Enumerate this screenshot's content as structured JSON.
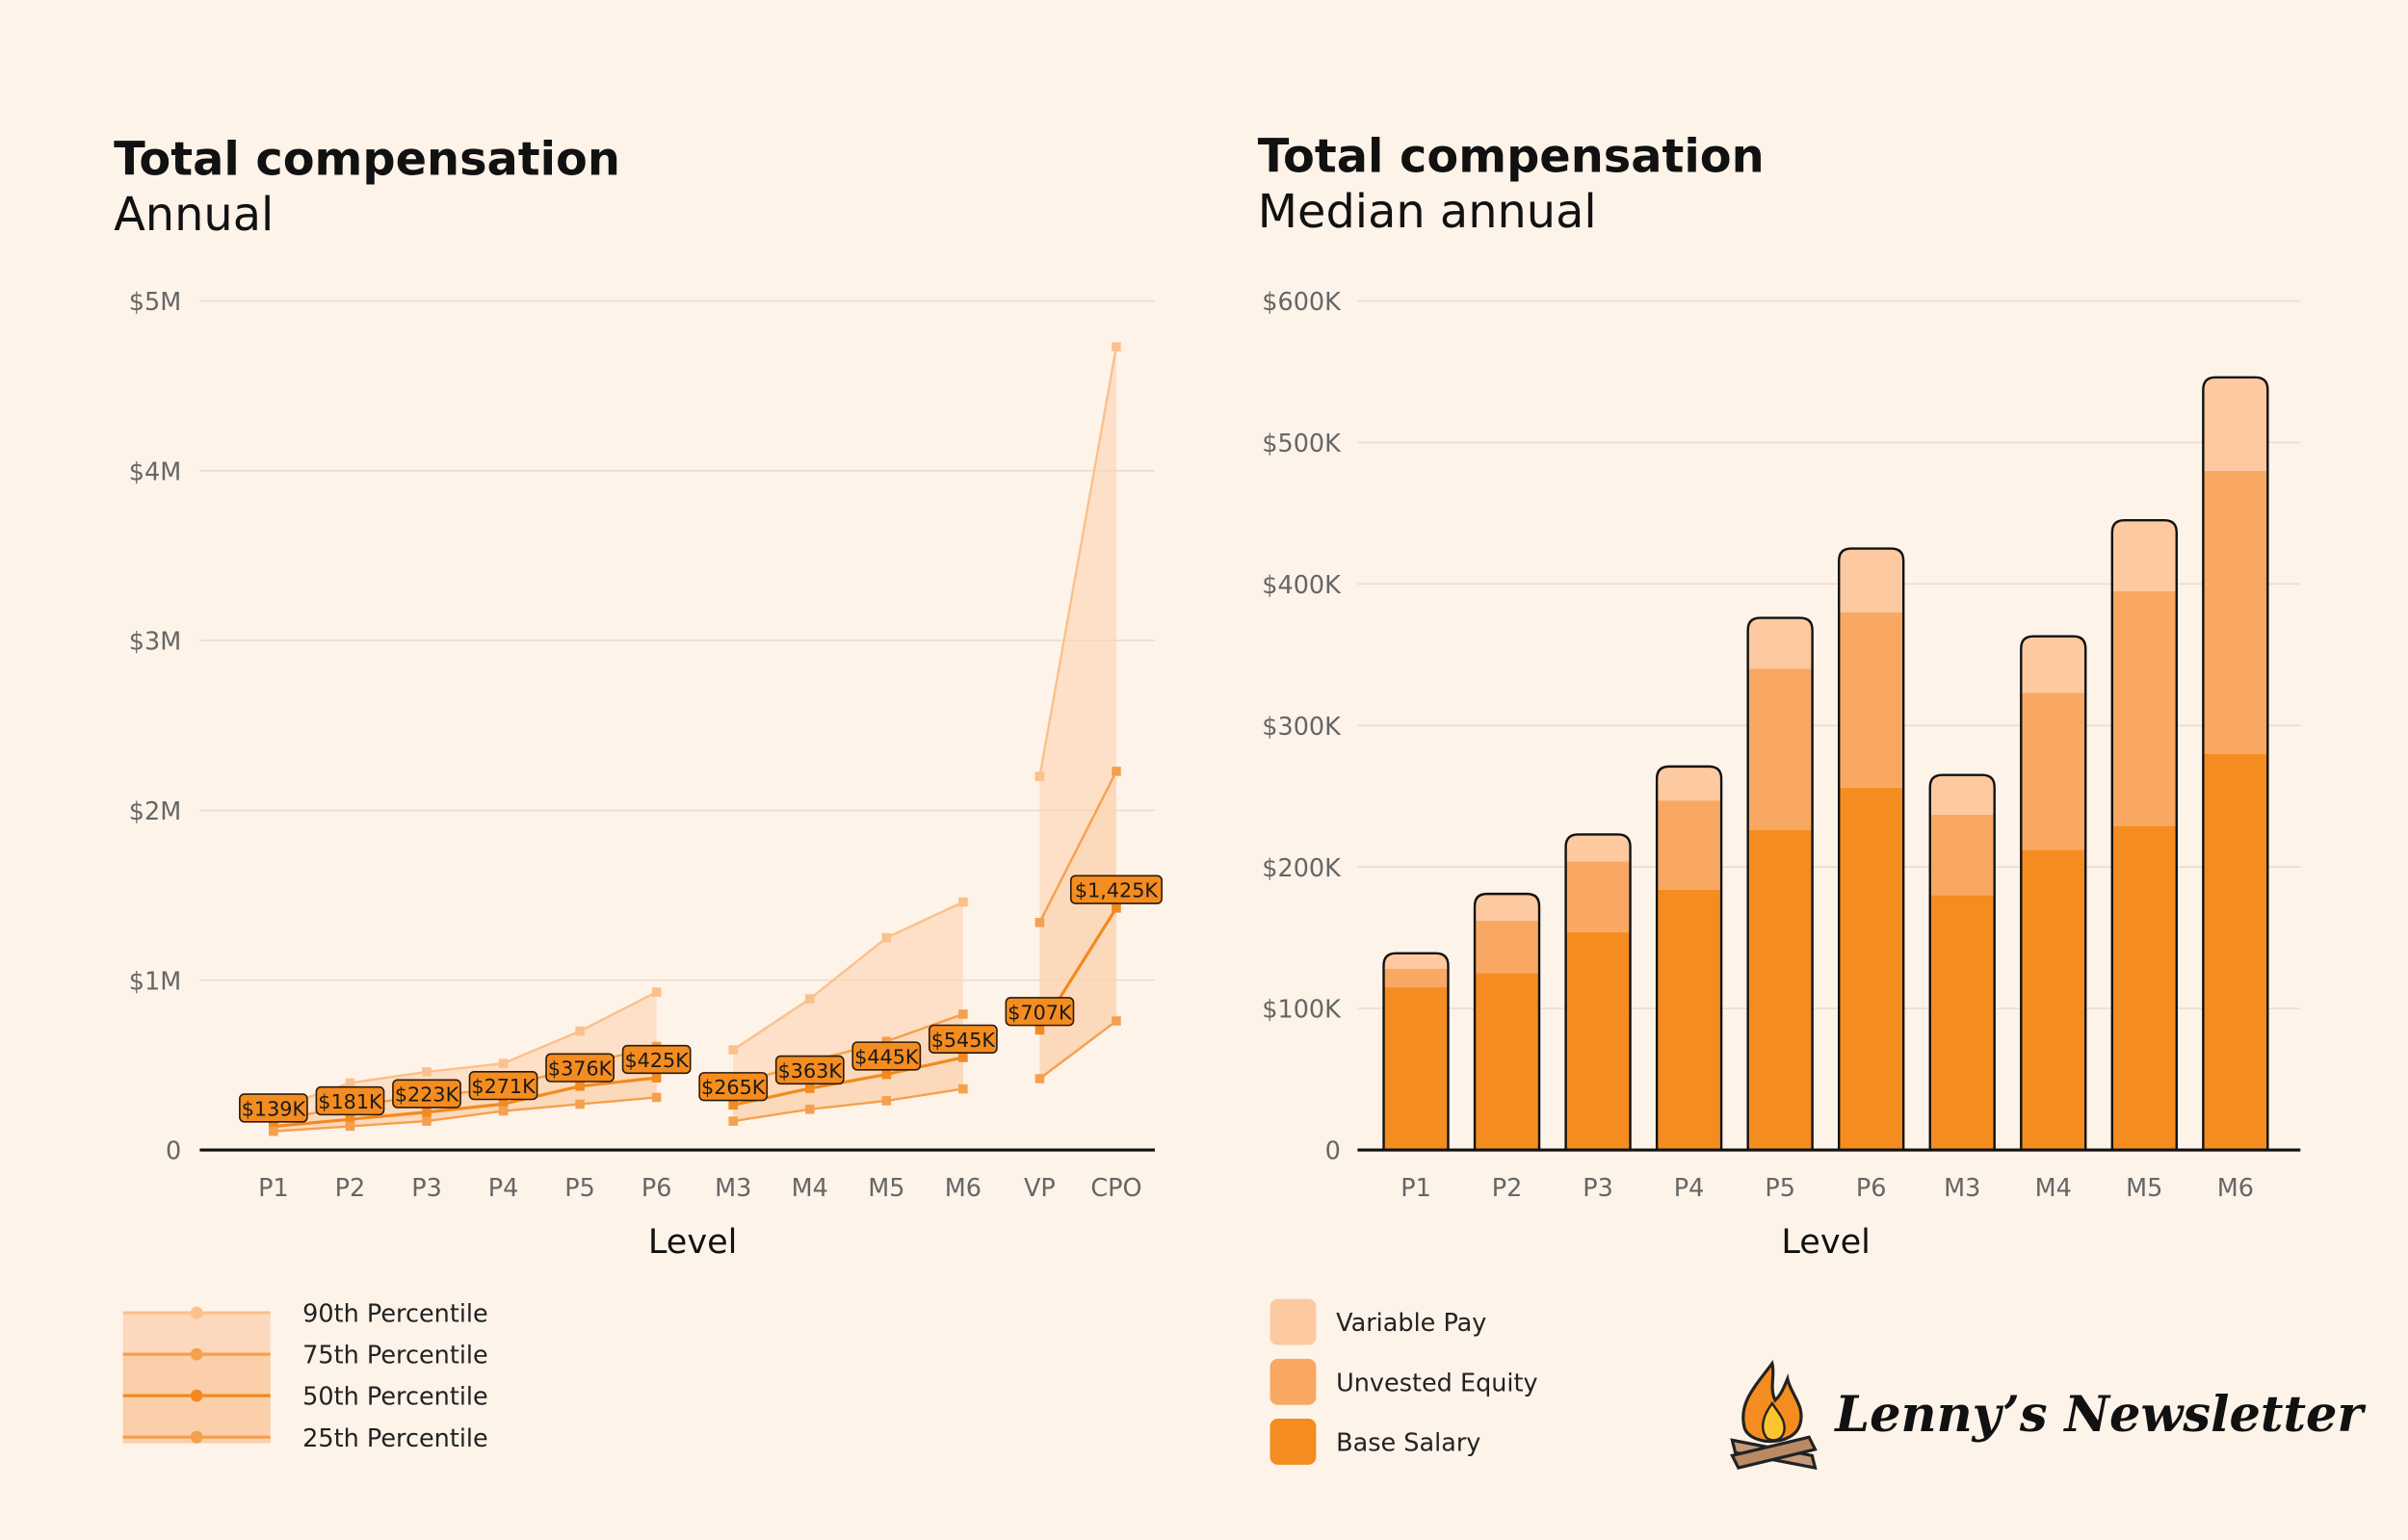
{
  "colors": {
    "background": "#fef3e9",
    "base": "#f48c20",
    "equity": "#f8a862",
    "variable": "#fcc9a0",
    "p90": "#fbc08c",
    "p75": "#f5a04e",
    "p50": "#f28a1f",
    "p25": "#f5a04e",
    "band": "#fbd3b0",
    "grid": "#eadbd0"
  },
  "logo": {
    "text": "Lenny’s Newsletter",
    "icon": "campfire-icon"
  },
  "chart_data": [
    {
      "type": "line",
      "title": "Total compensation",
      "subtitle": "Annual",
      "xlabel": "Level",
      "ylabel": "",
      "ylim": [
        0,
        5000000
      ],
      "yticks": [
        {
          "v": 0,
          "label": "0"
        },
        {
          "v": 1000000,
          "label": "$1M"
        },
        {
          "v": 2000000,
          "label": "$2M"
        },
        {
          "v": 3000000,
          "label": "$3M"
        },
        {
          "v": 4000000,
          "label": "$4M"
        },
        {
          "v": 5000000,
          "label": "$5M"
        }
      ],
      "grid": true,
      "legend_placement": "bottom-left",
      "categories": [
        "P1",
        "P2",
        "P3",
        "P4",
        "P5",
        "P6",
        "M3",
        "M4",
        "M5",
        "M6",
        "VP",
        "CPO"
      ],
      "groups": [
        [
          0,
          5
        ],
        [
          6,
          9
        ],
        [
          10,
          11
        ]
      ],
      "series": [
        {
          "name": "90th Percentile",
          "values": [
            240000,
            395000,
            460000,
            510000,
            700000,
            930000,
            590000,
            890000,
            1250000,
            1460000,
            2200000,
            4730000
          ]
        },
        {
          "name": "75th Percentile",
          "values": [
            170000,
            260000,
            320000,
            360000,
            500000,
            610000,
            380000,
            520000,
            640000,
            800000,
            1340000,
            2230000
          ]
        },
        {
          "name": "50th Percentile",
          "values": [
            139000,
            181000,
            223000,
            271000,
            376000,
            425000,
            265000,
            363000,
            445000,
            545000,
            707000,
            1425000
          ]
        },
        {
          "name": "25th Percentile",
          "values": [
            110000,
            140000,
            170000,
            230000,
            270000,
            310000,
            170000,
            240000,
            290000,
            360000,
            420000,
            760000
          ]
        }
      ],
      "data_labels": [
        "$139K",
        "$181K",
        "$223K",
        "$271K",
        "$376K",
        "$425K",
        "$265K",
        "$363K",
        "$445K",
        "$545K",
        "$707K",
        "$1,425K"
      ]
    },
    {
      "type": "bar",
      "stacked": true,
      "title": "Total compensation",
      "subtitle": "Median annual",
      "xlabel": "Level",
      "ylabel": "",
      "ylim": [
        0,
        600000
      ],
      "yticks": [
        {
          "v": 0,
          "label": "0"
        },
        {
          "v": 100000,
          "label": "$100K"
        },
        {
          "v": 200000,
          "label": "$200K"
        },
        {
          "v": 300000,
          "label": "$300K"
        },
        {
          "v": 400000,
          "label": "$400K"
        },
        {
          "v": 500000,
          "label": "$500K"
        },
        {
          "v": 600000,
          "label": "$600K"
        }
      ],
      "grid": true,
      "legend_placement": "bottom-left",
      "categories": [
        "P1",
        "P2",
        "P3",
        "P4",
        "P5",
        "P6",
        "M3",
        "M4",
        "M5",
        "M6"
      ],
      "series": [
        {
          "name": "Base Salary",
          "values": [
            115000,
            125000,
            154000,
            184000,
            226000,
            256000,
            180000,
            212000,
            229000,
            280000
          ]
        },
        {
          "name": "Unvested Equity",
          "values": [
            13000,
            37000,
            50000,
            63000,
            114000,
            124000,
            57000,
            111000,
            166000,
            200000
          ]
        },
        {
          "name": "Variable Pay",
          "values": [
            11000,
            19000,
            19000,
            24000,
            36000,
            45000,
            28000,
            40000,
            50000,
            66000
          ]
        }
      ],
      "legend": [
        "Variable Pay",
        "Unvested Equity",
        "Base Salary"
      ]
    }
  ]
}
